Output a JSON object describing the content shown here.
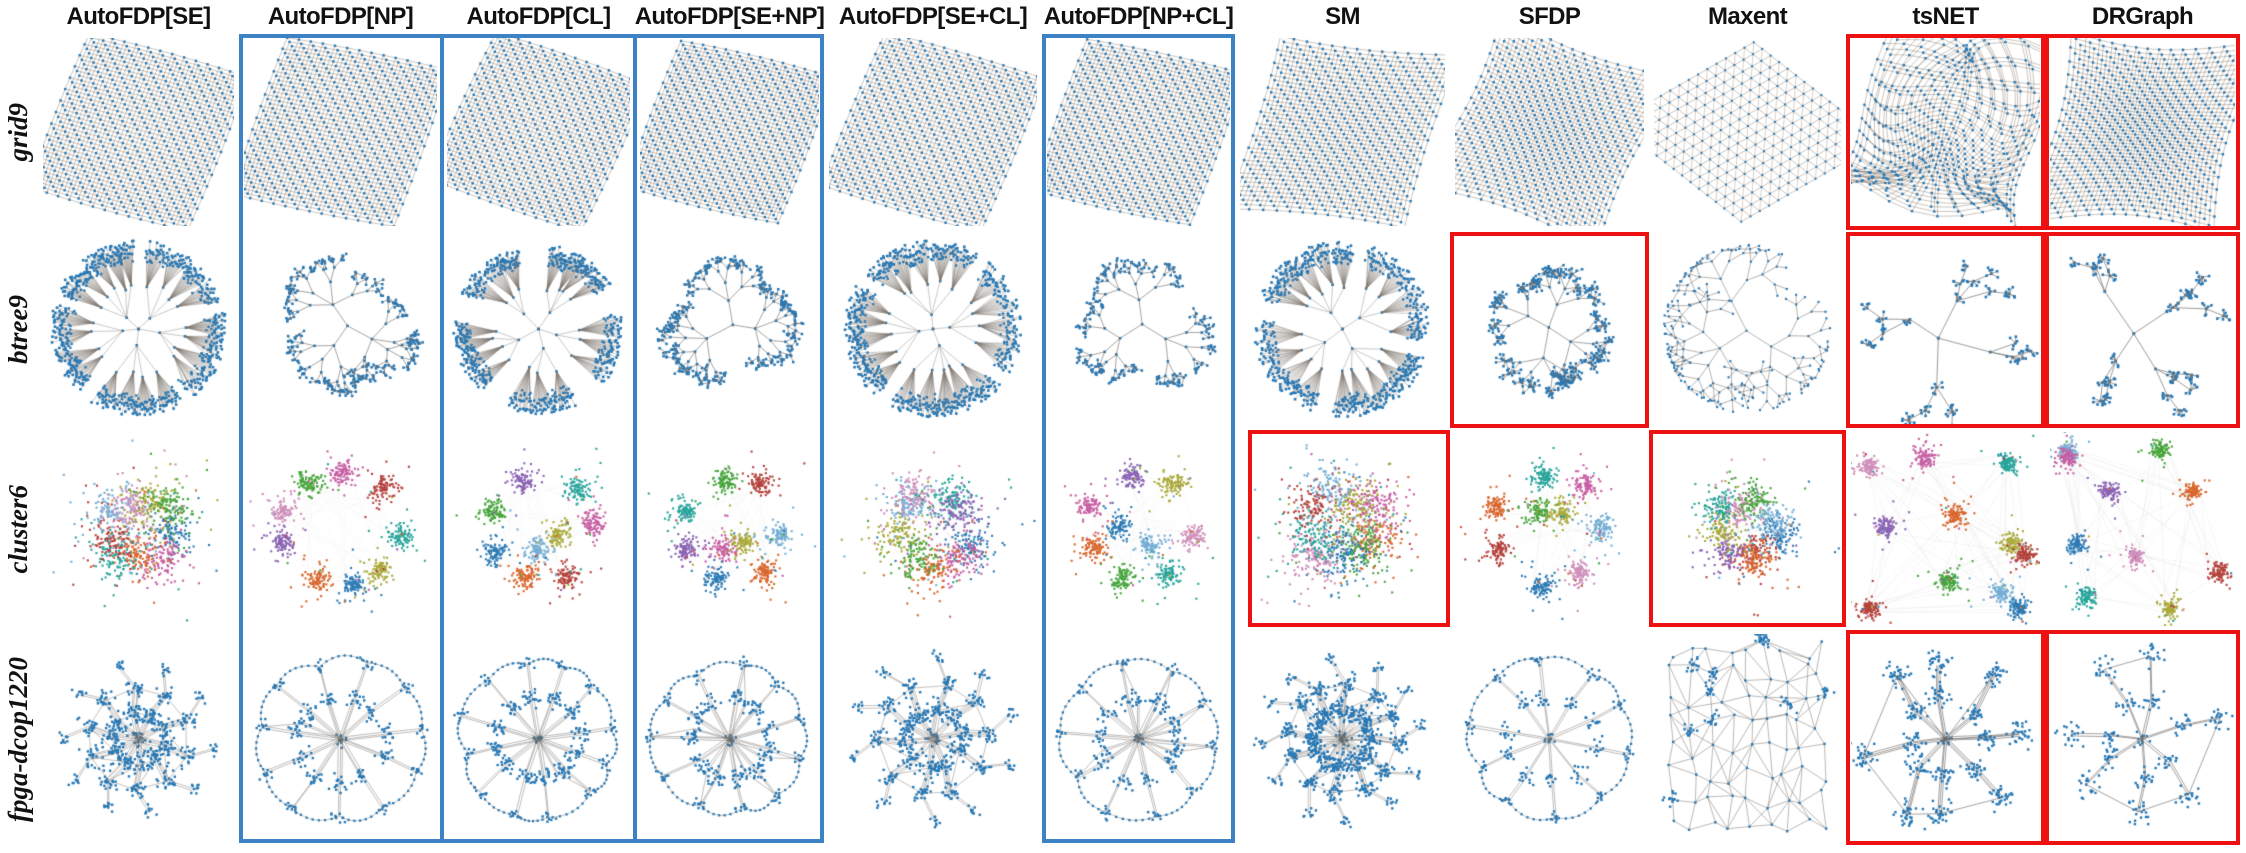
{
  "figure": {
    "columns": [
      {
        "label": "AutoFDP[SE]"
      },
      {
        "label": "AutoFDP[NP]"
      },
      {
        "label": "AutoFDP[CL]"
      },
      {
        "label": "AutoFDP[SE+NP]"
      },
      {
        "label": "AutoFDP[SE+CL]"
      },
      {
        "label": "AutoFDP[NP+CL]"
      },
      {
        "label": "SM"
      },
      {
        "label": "SFDP"
      },
      {
        "label": "Maxent"
      },
      {
        "label": "tsNET"
      },
      {
        "label": "DRGraph"
      }
    ],
    "rows": [
      {
        "label": "grid9",
        "cells": [
          {
            "k": "grid",
            "N": 14,
            "angle": 15,
            "skew": 7,
            "layers": 3,
            "barrel": -0.05
          },
          {
            "k": "grid",
            "N": 14,
            "angle": 11,
            "skew": 9,
            "layers": 3,
            "barrel": -0.04
          },
          {
            "k": "grid",
            "N": 14,
            "angle": 19,
            "skew": 6,
            "layers": 3,
            "barrel": -0.05
          },
          {
            "k": "grid",
            "N": 14,
            "angle": 13,
            "skew": 8,
            "layers": 3,
            "barrel": -0.06
          },
          {
            "k": "grid",
            "N": 14,
            "angle": 16,
            "skew": 7,
            "layers": 3,
            "barrel": -0.04
          },
          {
            "k": "grid",
            "N": 14,
            "angle": 12,
            "skew": 8,
            "layers": 3,
            "barrel": -0.05
          },
          {
            "k": "grid",
            "N": 14,
            "angle": 7,
            "skew": 10,
            "layers": 3,
            "barrel": 0.1
          },
          {
            "k": "grid",
            "N": 15,
            "angle": 21,
            "skew": 5,
            "layers": 3,
            "barrel": 0.22
          },
          {
            "k": "grid",
            "N": 16,
            "angle": 38,
            "skew": 22,
            "layers": 1,
            "barrel": 0,
            "flat": true
          },
          {
            "k": "grid",
            "N": 14,
            "angle": 9,
            "skew": 8,
            "layers": 3,
            "barrel": 0.12,
            "twist": 0.55
          },
          {
            "k": "grid",
            "N": 15,
            "angle": 5,
            "skew": 9,
            "layers": 3,
            "barrel": 0.3
          }
        ]
      },
      {
        "label": "btree9",
        "cells": [
          {
            "k": "balloon",
            "wedges": 5,
            "gap": 0.12,
            "leafK": 16,
            "subs": 4
          },
          {
            "k": "fractal",
            "depth": 4,
            "clump": 5,
            "clumpR": 3.5,
            "k0": 3
          },
          {
            "k": "balloon",
            "wedges": 5,
            "gap": 0.3,
            "leafK": 17,
            "subs": 3
          },
          {
            "k": "fractal",
            "depth": 4,
            "clump": 5,
            "clumpR": 3.5,
            "k0": 3
          },
          {
            "k": "balloon",
            "wedges": 4,
            "gap": 0.1,
            "leafK": 17,
            "subs": 4
          },
          {
            "k": "fractal",
            "depth": 4,
            "clump": 4,
            "clumpR": 3.5,
            "k0": 3
          },
          {
            "k": "balloon",
            "wedges": 4,
            "gap": 0.14,
            "leafK": 16,
            "subs": 4
          },
          {
            "k": "fractal",
            "depth": 3,
            "clump": 13,
            "clumpR": 5,
            "k0": 4
          },
          {
            "k": "fractal",
            "depth": 5,
            "clump": 0,
            "clumpR": 0,
            "k0": 3,
            "decay": 0.8,
            "spread": 1.0,
            "thin": true
          },
          {
            "k": "sparseclumps",
            "arms": 4
          },
          {
            "k": "sparseclumps",
            "arms": 4
          }
        ]
      },
      {
        "label": "cluster6",
        "cells": [
          {
            "k": "clusters",
            "layout": "mixed",
            "n": 9,
            "sig": 0.16,
            "pts": 115,
            "edges": 0.15
          },
          {
            "k": "clusters",
            "layout": "ring",
            "n": 9,
            "sig": 0.085,
            "pts": 95,
            "edges": 0.12
          },
          {
            "k": "clusters",
            "layout": "separated",
            "n": 9,
            "sig": 0.09,
            "pts": 95,
            "edges": 0.12
          },
          {
            "k": "clusters",
            "layout": "separated",
            "n": 9,
            "sig": 0.09,
            "pts": 95,
            "edges": 0.12
          },
          {
            "k": "clusters",
            "layout": "mixed",
            "n": 9,
            "sig": 0.15,
            "pts": 110,
            "edges": 0.15
          },
          {
            "k": "clusters",
            "layout": "separated",
            "n": 9,
            "sig": 0.09,
            "pts": 95,
            "edges": 0.12
          },
          {
            "k": "clusters",
            "layout": "mixed",
            "n": 9,
            "sig": 0.19,
            "pts": 130,
            "edges": 0.15
          },
          {
            "k": "clusters",
            "layout": "separated",
            "n": 9,
            "sig": 0.085,
            "pts": 100,
            "edges": 0.12
          },
          {
            "k": "clusters",
            "layout": "mixed",
            "n": 9,
            "sig": 0.13,
            "pts": 105,
            "edges": 0.15
          },
          {
            "k": "clusters",
            "layout": "spread",
            "n": 11,
            "sig": 0.07,
            "pts": 105,
            "edges": 0.25
          },
          {
            "k": "clusters",
            "layout": "spread",
            "n": 10,
            "sig": 0.065,
            "pts": 95,
            "edges": 0.25
          }
        ]
      },
      {
        "label": "fpga-dcop1220",
        "cells": [
          {
            "k": "snowflake",
            "arms": 10,
            "dense": 1
          },
          {
            "k": "wheel",
            "arms": 11,
            "clump": 16
          },
          {
            "k": "wheel",
            "arms": 12,
            "clump": 20
          },
          {
            "k": "wheel",
            "arms": 11,
            "clump": 16
          },
          {
            "k": "snowflake",
            "arms": 10,
            "dense": 1
          },
          {
            "k": "wheel",
            "arms": 10,
            "clump": 13
          },
          {
            "k": "snowflake",
            "arms": 12,
            "dense": 1.3
          },
          {
            "k": "wheel",
            "arms": 10,
            "clump": 12,
            "sparse": true
          },
          {
            "k": "mesh"
          },
          {
            "k": "star",
            "arms": 8,
            "bn": 28
          },
          {
            "k": "star",
            "arms": 7,
            "bn": 18,
            "sparse": true
          }
        ]
      }
    ],
    "highlights": {
      "blue_columns": [
        1,
        2,
        3,
        5
      ],
      "red_cells": [
        [
          0,
          9
        ],
        [
          0,
          10
        ],
        [
          1,
          7
        ],
        [
          1,
          9
        ],
        [
          1,
          10
        ],
        [
          2,
          6
        ],
        [
          2,
          8
        ],
        [
          3,
          9
        ],
        [
          3,
          10
        ]
      ]
    },
    "colors": {
      "node": "#2878b4",
      "edge": "#787470",
      "blue_box": "#3d82c4",
      "red_box": "#ee1111",
      "header_text": "#111111",
      "palette": [
        "#2d7bb5",
        "#74aed4",
        "#27a59b",
        "#47a53c",
        "#aaaa3c",
        "#d9662d",
        "#b5423d",
        "#c75fa3",
        "#cf8fba",
        "#8a63b4"
      ]
    }
  }
}
